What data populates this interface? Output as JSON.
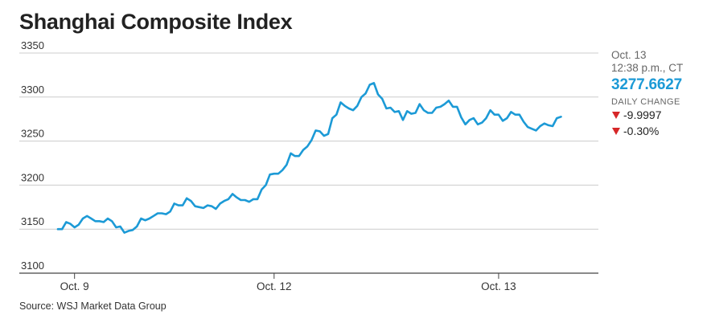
{
  "title": "Shanghai Composite Index",
  "source": "Source: WSJ Market Data Group",
  "panel": {
    "date": "Oct. 13",
    "time": "12:38 p.m., CT",
    "value": "3277.6627",
    "daily_change_label": "DAILY CHANGE",
    "change_points": "-9.9997",
    "change_percent": "-0.30%",
    "direction": "down"
  },
  "colors": {
    "line": "#1c9ad6",
    "down": "#d62728",
    "grid": "#cccccc",
    "axis": "#444444"
  },
  "chart_data": {
    "type": "line",
    "title": "Shanghai Composite Index",
    "xlabel": "",
    "ylabel": "",
    "ylim": [
      3100,
      3350
    ],
    "yticks": [
      3100,
      3150,
      3200,
      3250,
      3300,
      3350
    ],
    "ytick_labels": [
      "3100",
      "3150",
      "3200",
      "3250",
      "3300",
      "3350"
    ],
    "xlim": [
      0,
      130
    ],
    "xticks": [
      {
        "x": 4,
        "label": "Oct. 9"
      },
      {
        "x": 52,
        "label": "Oct. 12"
      },
      {
        "x": 106,
        "label": "Oct. 13"
      }
    ],
    "grid": true,
    "legend": "none",
    "series": [
      {
        "values": [
          [
            0,
            3150
          ],
          [
            1,
            3150
          ],
          [
            2,
            3158
          ],
          [
            3,
            3156
          ],
          [
            4,
            3152
          ],
          [
            5,
            3155
          ],
          [
            6,
            3162
          ],
          [
            7,
            3165
          ],
          [
            8,
            3162
          ],
          [
            9,
            3159
          ],
          [
            10,
            3159
          ],
          [
            11,
            3158
          ],
          [
            12,
            3162
          ],
          [
            13,
            3159
          ],
          [
            14,
            3152
          ],
          [
            15,
            3153
          ],
          [
            16,
            3146
          ],
          [
            17,
            3148
          ],
          [
            18,
            3149
          ],
          [
            19,
            3153
          ],
          [
            20,
            3162
          ],
          [
            21,
            3160
          ],
          [
            22,
            3162
          ],
          [
            23,
            3165
          ],
          [
            24,
            3168
          ],
          [
            25,
            3168
          ],
          [
            26,
            3167
          ],
          [
            27,
            3170
          ],
          [
            28,
            3179
          ],
          [
            29,
            3177
          ],
          [
            30,
            3177
          ],
          [
            31,
            3185
          ],
          [
            32,
            3182
          ],
          [
            33,
            3176
          ],
          [
            34,
            3175
          ],
          [
            35,
            3174
          ],
          [
            36,
            3177
          ],
          [
            37,
            3176
          ],
          [
            38,
            3173
          ],
          [
            39,
            3179
          ],
          [
            40,
            3182
          ],
          [
            41,
            3184
          ],
          [
            42,
            3190
          ],
          [
            43,
            3186
          ],
          [
            44,
            3183
          ],
          [
            45,
            3183
          ],
          [
            46,
            3181
          ],
          [
            47,
            3184
          ],
          [
            48,
            3184
          ],
          [
            49,
            3195
          ],
          [
            50,
            3200
          ],
          [
            51,
            3212
          ],
          [
            52,
            3213
          ],
          [
            53,
            3213
          ],
          [
            54,
            3217
          ],
          [
            55,
            3223
          ],
          [
            56,
            3236
          ],
          [
            57,
            3233
          ],
          [
            58,
            3233
          ],
          [
            59,
            3240
          ],
          [
            60,
            3244
          ],
          [
            61,
            3251
          ],
          [
            62,
            3262
          ],
          [
            63,
            3261
          ],
          [
            64,
            3256
          ],
          [
            65,
            3258
          ],
          [
            66,
            3276
          ],
          [
            67,
            3280
          ],
          [
            68,
            3294
          ],
          [
            69,
            3290
          ],
          [
            70,
            3287
          ],
          [
            71,
            3285
          ],
          [
            72,
            3290
          ],
          [
            73,
            3300
          ],
          [
            74,
            3304
          ],
          [
            75,
            3314
          ],
          [
            76,
            3316
          ],
          [
            77,
            3303
          ],
          [
            78,
            3298
          ],
          [
            79,
            3287
          ],
          [
            80,
            3288
          ],
          [
            81,
            3283
          ],
          [
            82,
            3284
          ],
          [
            83,
            3274
          ],
          [
            84,
            3284
          ],
          [
            85,
            3281
          ],
          [
            86,
            3282
          ],
          [
            87,
            3292
          ],
          [
            88,
            3285
          ],
          [
            89,
            3282
          ],
          [
            90,
            3282
          ],
          [
            91,
            3288
          ],
          [
            92,
            3289
          ],
          [
            93,
            3292
          ],
          [
            94,
            3296
          ],
          [
            95,
            3289
          ],
          [
            96,
            3289
          ],
          [
            97,
            3277
          ],
          [
            98,
            3269
          ],
          [
            99,
            3274
          ],
          [
            100,
            3276
          ],
          [
            101,
            3269
          ],
          [
            102,
            3271
          ],
          [
            103,
            3276
          ],
          [
            104,
            3285
          ],
          [
            105,
            3280
          ],
          [
            106,
            3280
          ],
          [
            107,
            3273
          ],
          [
            108,
            3276
          ],
          [
            109,
            3283
          ],
          [
            110,
            3280
          ],
          [
            111,
            3280
          ],
          [
            112,
            3272
          ],
          [
            113,
            3266
          ],
          [
            114,
            3264
          ],
          [
            115,
            3262
          ],
          [
            116,
            3267
          ],
          [
            117,
            3270
          ],
          [
            118,
            3268
          ],
          [
            119,
            3267
          ],
          [
            120,
            3276
          ],
          [
            121,
            3277.66
          ]
        ]
      }
    ]
  }
}
